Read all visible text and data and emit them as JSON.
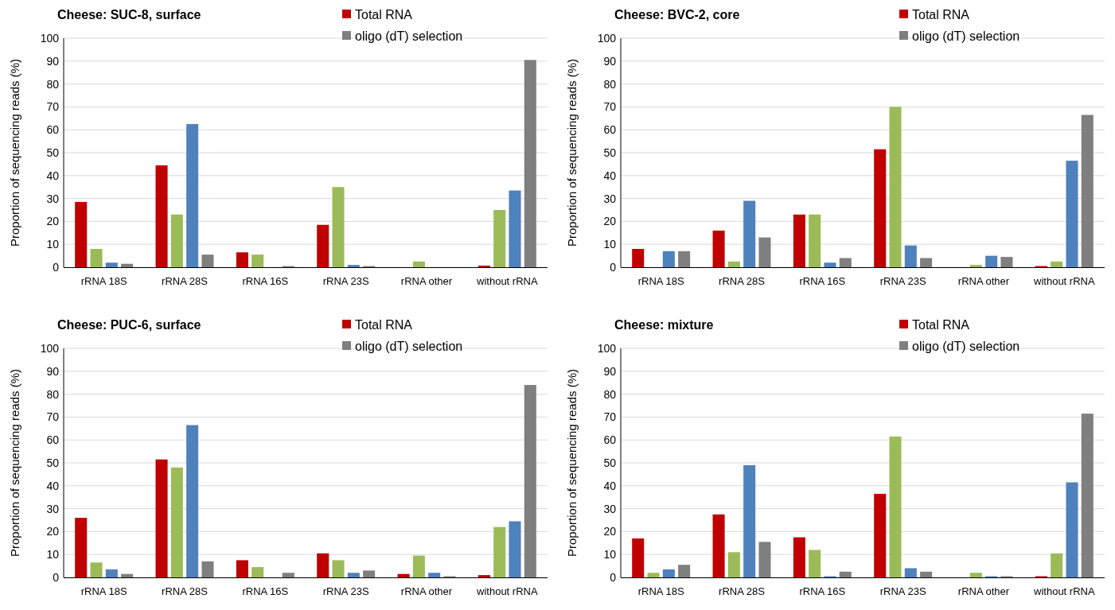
{
  "chart_data": [
    {
      "type": "bar",
      "title": "Cheese: SUC-8, surface",
      "ylabel": "Proportion of sequencing reads (%)",
      "categories": [
        "rRNA 18S",
        "rRNA 28S",
        "rRNA 16S",
        "rRNA 23S",
        "rRNA other",
        "without rRNA"
      ],
      "ylim": [
        0,
        100
      ],
      "yticks": [
        0,
        10,
        20,
        30,
        40,
        50,
        60,
        70,
        80,
        90,
        100
      ],
      "grid": "y",
      "legend": "top right",
      "series": [
        {
          "name": "Total RNA",
          "color": "#c00000",
          "values": [
            28.5,
            44.5,
            6.5,
            18.5,
            0,
            0.7
          ]
        },
        {
          "color": "#9bbb59",
          "values": [
            8,
            23,
            5.5,
            35,
            2.5,
            25
          ]
        },
        {
          "color": "#4f81bd",
          "values": [
            2,
            62.5,
            0,
            1,
            0,
            33.5
          ]
        },
        {
          "name": "oligo (dT) selection",
          "color": "#7f7f7f",
          "values": [
            1.5,
            5.5,
            0.5,
            0.5,
            0,
            90.5
          ]
        }
      ]
    },
    {
      "type": "bar",
      "title": "Cheese: BVC-2, core",
      "ylabel": "Proportion of sequencing reads (%)",
      "categories": [
        "rRNA 18S",
        "rRNA 28S",
        "rRNA 16S",
        "rRNA 23S",
        "rRNA other",
        "without rRNA"
      ],
      "ylim": [
        0,
        100
      ],
      "yticks": [
        0,
        10,
        20,
        30,
        40,
        50,
        60,
        70,
        80,
        90,
        100
      ],
      "grid": "y",
      "legend": "top right",
      "series": [
        {
          "name": "Total RNA",
          "color": "#c00000",
          "values": [
            8,
            16,
            23,
            51.5,
            0,
            0.5
          ]
        },
        {
          "color": "#9bbb59",
          "values": [
            0,
            2.5,
            23,
            70,
            1,
            2.5
          ]
        },
        {
          "color": "#4f81bd",
          "values": [
            7,
            29,
            2,
            9.5,
            5,
            46.5
          ]
        },
        {
          "name": "oligo (dT) selection",
          "color": "#7f7f7f",
          "values": [
            7,
            13,
            4,
            4,
            4.5,
            66.5
          ]
        }
      ]
    },
    {
      "type": "bar",
      "title": "Cheese: PUC-6, surface",
      "ylabel": "Proportion of sequencing reads (%)",
      "categories": [
        "rRNA 18S",
        "rRNA 28S",
        "rRNA 16S",
        "rRNA 23S",
        "rRNA other",
        "without rRNA"
      ],
      "ylim": [
        0,
        100
      ],
      "yticks": [
        0,
        10,
        20,
        30,
        40,
        50,
        60,
        70,
        80,
        90,
        100
      ],
      "grid": "y",
      "legend": "top right",
      "series": [
        {
          "name": "Total RNA",
          "color": "#c00000",
          "values": [
            26,
            51.5,
            7.5,
            10.5,
            1.5,
            1
          ]
        },
        {
          "color": "#9bbb59",
          "values": [
            6.5,
            48,
            4.5,
            7.5,
            9.5,
            22
          ]
        },
        {
          "color": "#4f81bd",
          "values": [
            3.5,
            66.5,
            0,
            2,
            2,
            24.5
          ]
        },
        {
          "name": "oligo (dT) selection",
          "color": "#7f7f7f",
          "values": [
            1.5,
            7,
            2,
            3,
            0.5,
            84
          ]
        }
      ]
    },
    {
      "type": "bar",
      "title": "Cheese: mixture",
      "ylabel": "Proportion of sequencing reads (%)",
      "categories": [
        "rRNA 18S",
        "rRNA 28S",
        "rRNA 16S",
        "rRNA 23S",
        "rRNA other",
        "without rRNA"
      ],
      "ylim": [
        0,
        100
      ],
      "yticks": [
        0,
        10,
        20,
        30,
        40,
        50,
        60,
        70,
        80,
        90,
        100
      ],
      "grid": "y",
      "legend": "top right",
      "series": [
        {
          "name": "Total RNA",
          "color": "#c00000",
          "values": [
            17,
            27.5,
            17.5,
            36.5,
            0,
            0.5
          ]
        },
        {
          "color": "#9bbb59",
          "values": [
            2,
            11,
            12,
            61.5,
            2,
            10.5
          ]
        },
        {
          "color": "#4f81bd",
          "values": [
            3.5,
            49,
            0.5,
            4,
            0.5,
            41.5
          ]
        },
        {
          "name": "oligo (dT) selection",
          "color": "#7f7f7f",
          "values": [
            5.5,
            15.5,
            2.5,
            2.5,
            0.5,
            71.5
          ]
        }
      ]
    }
  ]
}
